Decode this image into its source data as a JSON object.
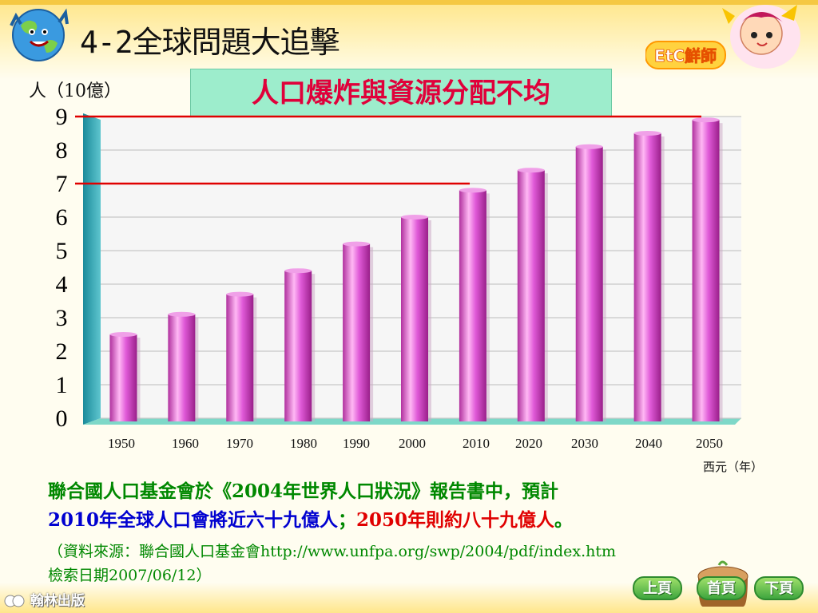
{
  "header": {
    "title": "4-2全球問題大追擊",
    "brand_logo_text": "EtC鮮師"
  },
  "subtitle": "人口爆炸與資源分配不均",
  "chart_data": {
    "type": "bar",
    "title": "",
    "ylabel": "人（10億）",
    "xlabel": "西元（年）",
    "ylim": [
      0,
      9
    ],
    "yticks": [
      "0",
      "1",
      "2",
      "3",
      "4",
      "5",
      "6",
      "7",
      "8",
      "9"
    ],
    "categories": [
      "1950",
      "1960",
      "1970",
      "1980",
      "1990",
      "2000",
      "2010",
      "2020",
      "2030",
      "2040",
      "2050"
    ],
    "values": [
      2.5,
      3.1,
      3.7,
      4.4,
      5.2,
      6.0,
      6.8,
      7.4,
      8.1,
      8.5,
      8.9
    ],
    "bar_color": "#e05ad8",
    "floor_color": "#7ed8c8",
    "wall_color": "#1a8a9a",
    "reference_lines": [
      {
        "value": 9,
        "color": "#e00000"
      },
      {
        "value": 7,
        "color": "#e00000"
      }
    ],
    "grid": true
  },
  "description": {
    "part1": "聯合國人口基金會於《2004年世界人口狀況》報告書中，預計",
    "part2": "2010年全球人口會將近六十九億人",
    "part3": "；",
    "part4": "2050年則約八十九億人",
    "part5": "。"
  },
  "source": {
    "line1": "（資料來源：聯合國人口基金會http://www.unfpa.org/swp/2004/pdf/index.htm",
    "line2": "檢索日期2007/06/12）"
  },
  "footer": {
    "publisher": "翰林出版",
    "prev_label": "上頁",
    "home_label": "首頁",
    "next_label": "下頁"
  },
  "colors": {
    "accent_green": "#008800",
    "accent_blue": "#0000d0",
    "accent_red": "#e00000",
    "subtitle_bg": "#9dedcc"
  }
}
